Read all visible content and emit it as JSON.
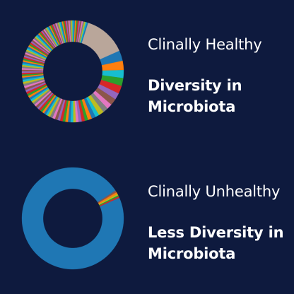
{
  "panels": [
    {
      "status": "Clinally Healthy",
      "headline": "Diversity in Microbiota"
    },
    {
      "status": "Clinally Unhealthy",
      "headline": "Less Diversity in Microbiota"
    }
  ],
  "palette": [
    "#1f77b4",
    "#ff7f0e",
    "#2ca02c",
    "#d62728",
    "#9467bd",
    "#8c564b",
    "#e377c2",
    "#7f7f7f",
    "#bcbd22",
    "#17becf"
  ],
  "chart_data": [
    {
      "type": "pie",
      "donut": true,
      "title": "",
      "slices": [
        {
          "value": 4.0,
          "color": "#1f77b4"
        },
        {
          "value": 3.5,
          "color": "#ff7f0e"
        },
        {
          "value": 3.0,
          "color": "#17becf"
        },
        {
          "value": 3.0,
          "color": "#2ca02c"
        },
        {
          "value": 3.0,
          "color": "#d62728"
        },
        {
          "value": 2.5,
          "color": "#9467bd"
        },
        {
          "value": 2.5,
          "color": "#8c564b"
        },
        {
          "value": 2.0,
          "color": "#e377c2"
        },
        {
          "value": 2.0,
          "color": "#7f7f7f"
        },
        {
          "value": 2.0,
          "color": "#bcbd22"
        },
        {
          "value": 1.5,
          "color": "#17becf"
        },
        {
          "value": 1.5,
          "color": "#1f77b4"
        },
        {
          "value": 1.5,
          "color": "#ff7f0e"
        },
        {
          "value": 1.2,
          "color": "#2ca02c"
        },
        {
          "value": 1.2,
          "color": "#d62728"
        },
        {
          "value": 1.2,
          "color": "#9467bd"
        },
        {
          "value": 1.0,
          "color": "#e377c2"
        },
        {
          "value": 1.0,
          "color": "#bcbd22"
        },
        {
          "value": 1.0,
          "color": "#17becf"
        },
        {
          "value": 1.0,
          "color": "#1f77b4"
        },
        {
          "value": 1.0,
          "color": "#ff7f0e"
        },
        {
          "value": 1.0,
          "color": "#2ca02c"
        },
        {
          "value": 1.0,
          "color": "#d62728"
        },
        {
          "value": 1.0,
          "color": "#9467bd"
        },
        {
          "value": 1.0,
          "color": "#8c564b"
        },
        {
          "value": 1.0,
          "color": "#e377c2"
        },
        {
          "value": 1.0,
          "color": "#7f7f7f"
        },
        {
          "value": 1.0,
          "color": "#bcbd22"
        },
        {
          "value": 0.8,
          "color": "#17becf"
        },
        {
          "value": 0.8,
          "color": "#1f77b4"
        },
        {
          "value": 0.8,
          "color": "#ff7f0e"
        },
        {
          "value": 0.8,
          "color": "#2ca02c"
        },
        {
          "value": 0.8,
          "color": "#d62728"
        },
        {
          "value": 0.8,
          "color": "#9467bd"
        },
        {
          "value": 0.8,
          "color": "#8c564b"
        },
        {
          "value": 0.8,
          "color": "#e377c2"
        },
        {
          "value": 0.8,
          "color": "#7f7f7f"
        },
        {
          "value": 0.8,
          "color": "#bcbd22"
        },
        {
          "value": 0.8,
          "color": "#17becf"
        },
        {
          "value": 0.8,
          "color": "#1f77b4"
        },
        {
          "value": 0.8,
          "color": "#ff7f0e"
        },
        {
          "value": 0.8,
          "color": "#2ca02c"
        },
        {
          "value": 0.8,
          "color": "#d62728"
        },
        {
          "value": 0.8,
          "color": "#9467bd"
        },
        {
          "value": 0.8,
          "color": "#8c564b"
        },
        {
          "value": 0.8,
          "color": "#e377c2"
        },
        {
          "value": 0.8,
          "color": "#7f7f7f"
        },
        {
          "value": 0.8,
          "color": "#bcbd22"
        },
        {
          "value": 0.8,
          "color": "#17becf"
        },
        {
          "value": 0.8,
          "color": "#1f77b4"
        },
        {
          "value": 0.6,
          "color": "#ff7f0e"
        },
        {
          "value": 0.6,
          "color": "#2ca02c"
        },
        {
          "value": 0.6,
          "color": "#d62728"
        },
        {
          "value": 0.6,
          "color": "#9467bd"
        },
        {
          "value": 0.6,
          "color": "#8c564b"
        },
        {
          "value": 0.6,
          "color": "#e377c2"
        },
        {
          "value": 0.6,
          "color": "#7f7f7f"
        },
        {
          "value": 0.6,
          "color": "#bcbd22"
        },
        {
          "value": 0.6,
          "color": "#17becf"
        },
        {
          "value": 0.6,
          "color": "#1f77b4"
        },
        {
          "value": 0.6,
          "color": "#ff7f0e"
        },
        {
          "value": 0.6,
          "color": "#2ca02c"
        },
        {
          "value": 0.6,
          "color": "#d62728"
        },
        {
          "value": 0.6,
          "color": "#9467bd"
        },
        {
          "value": 0.6,
          "color": "#8c564b"
        },
        {
          "value": 0.6,
          "color": "#e377c2"
        },
        {
          "value": 0.6,
          "color": "#7f7f7f"
        },
        {
          "value": 0.6,
          "color": "#bcbd22"
        },
        {
          "value": 0.6,
          "color": "#17becf"
        },
        {
          "value": 0.6,
          "color": "#1f77b4"
        },
        {
          "value": 0.6,
          "color": "#ff7f0e"
        },
        {
          "value": 0.6,
          "color": "#2ca02c"
        },
        {
          "value": 0.6,
          "color": "#d62728"
        },
        {
          "value": 0.6,
          "color": "#9467bd"
        },
        {
          "value": 0.6,
          "color": "#8c564b"
        },
        {
          "value": 0.6,
          "color": "#e377c2"
        },
        {
          "value": 0.6,
          "color": "#7f7f7f"
        },
        {
          "value": 0.6,
          "color": "#bcbd22"
        },
        {
          "value": 0.6,
          "color": "#17becf"
        },
        {
          "value": 0.6,
          "color": "#1f77b4"
        },
        {
          "value": 0.5,
          "color": "#ff7f0e"
        },
        {
          "value": 0.5,
          "color": "#2ca02c"
        },
        {
          "value": 0.5,
          "color": "#d62728"
        },
        {
          "value": 0.5,
          "color": "#9467bd"
        },
        {
          "value": 0.5,
          "color": "#8c564b"
        },
        {
          "value": 0.5,
          "color": "#e377c2"
        },
        {
          "value": 0.5,
          "color": "#7f7f7f"
        },
        {
          "value": 0.5,
          "color": "#bcbd22"
        },
        {
          "value": 0.5,
          "color": "#17becf"
        },
        {
          "value": 0.5,
          "color": "#1f77b4"
        },
        {
          "value": 0.5,
          "color": "#ff7f0e"
        },
        {
          "value": 0.5,
          "color": "#2ca02c"
        },
        {
          "value": 0.5,
          "color": "#d62728"
        },
        {
          "value": 0.5,
          "color": "#9467bd"
        },
        {
          "value": 0.5,
          "color": "#8c564b"
        },
        {
          "value": 0.5,
          "color": "#e377c2"
        },
        {
          "value": 0.5,
          "color": "#7f7f7f"
        },
        {
          "value": 0.5,
          "color": "#bcbd22"
        },
        {
          "value": 0.5,
          "color": "#17becf"
        },
        {
          "value": 0.5,
          "color": "#1f77b4"
        },
        {
          "value": 0.5,
          "color": "#ff7f0e"
        },
        {
          "value": 0.5,
          "color": "#2ca02c"
        },
        {
          "value": 0.5,
          "color": "#d62728"
        },
        {
          "value": 0.5,
          "color": "#9467bd"
        },
        {
          "value": 0.5,
          "color": "#8c564b"
        },
        {
          "value": 0.5,
          "color": "#e377c2"
        },
        {
          "value": 0.5,
          "color": "#7f7f7f"
        },
        {
          "value": 0.5,
          "color": "#bcbd22"
        },
        {
          "value": 0.5,
          "color": "#17becf"
        },
        {
          "value": 0.5,
          "color": "#1f77b4"
        },
        {
          "value": 0.5,
          "color": "#ff7f0e"
        },
        {
          "value": 0.5,
          "color": "#2ca02c"
        },
        {
          "value": 0.5,
          "color": "#d62728"
        },
        {
          "value": 0.5,
          "color": "#9467bd"
        },
        {
          "value": 0.5,
          "color": "#8c564b"
        },
        {
          "value": 0.5,
          "color": "#e377c2"
        },
        {
          "value": 0.5,
          "color": "#7f7f7f"
        },
        {
          "value": 0.5,
          "color": "#bcbd22"
        },
        {
          "value": 0.5,
          "color": "#17becf"
        },
        {
          "value": 0.5,
          "color": "#1f77b4"
        },
        {
          "value": 16.0,
          "color": "#b9a69a"
        }
      ]
    },
    {
      "type": "pie",
      "donut": true,
      "title": "",
      "slices": [
        {
          "value": 97.5,
          "color": "#1f77b4"
        },
        {
          "value": 0.6,
          "color": "#8c564b"
        },
        {
          "value": 0.6,
          "color": "#ff7f0e"
        },
        {
          "value": 0.5,
          "color": "#bcbd22"
        },
        {
          "value": 0.4,
          "color": "#2ca02c"
        },
        {
          "value": 0.4,
          "color": "#d62728"
        }
      ]
    }
  ]
}
